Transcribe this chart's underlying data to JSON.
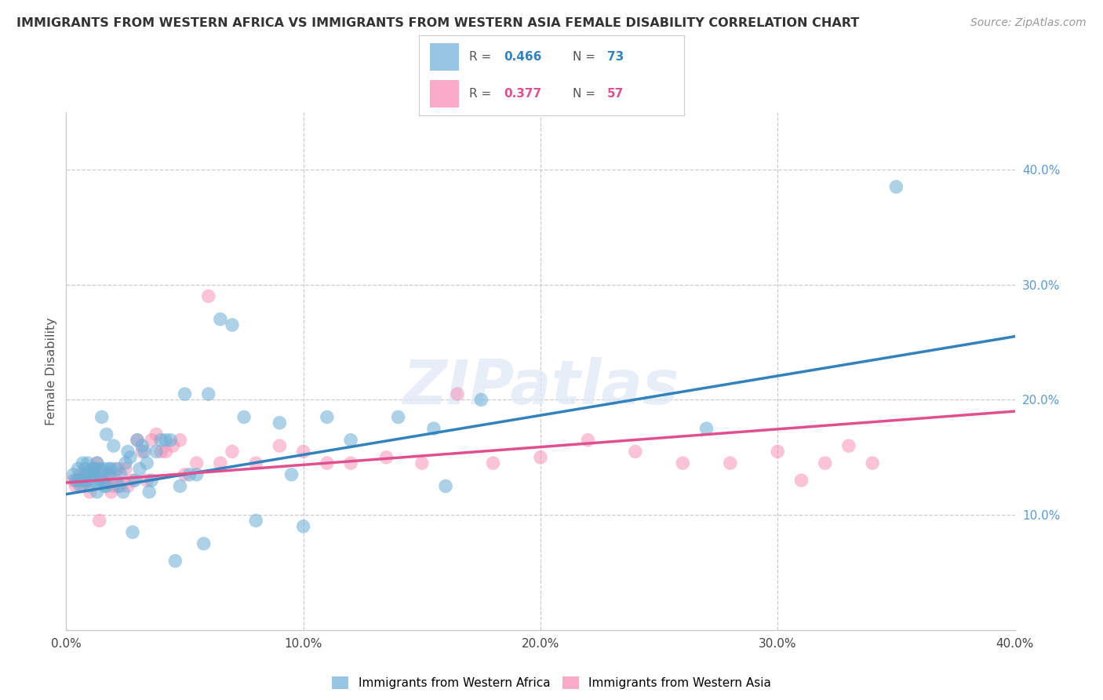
{
  "title": "IMMIGRANTS FROM WESTERN AFRICA VS IMMIGRANTS FROM WESTERN ASIA FEMALE DISABILITY CORRELATION CHART",
  "source": "Source: ZipAtlas.com",
  "ylabel": "Female Disability",
  "xlim": [
    0.0,
    0.4
  ],
  "ylim": [
    0.0,
    0.45
  ],
  "xticks": [
    0.0,
    0.1,
    0.2,
    0.3,
    0.4
  ],
  "xtick_labels": [
    "0.0%",
    "10.0%",
    "20.0%",
    "30.0%",
    "40.0%"
  ],
  "yticks_right": [
    0.1,
    0.2,
    0.3,
    0.4
  ],
  "ytick_labels_right": [
    "10.0%",
    "20.0%",
    "30.0%",
    "40.0%"
  ],
  "color_blue": "#6baed6",
  "color_pink": "#f888b0",
  "trendline_blue": "#3182bd",
  "trendline_pink": "#e05090",
  "label1": "Immigrants from Western Africa",
  "label2": "Immigrants from Western Asia",
  "watermark": "ZIPatlas",
  "blue_r": "0.466",
  "blue_n": "73",
  "pink_r": "0.377",
  "pink_n": "57",
  "blue_scatter_x": [
    0.003,
    0.004,
    0.005,
    0.005,
    0.006,
    0.007,
    0.007,
    0.008,
    0.008,
    0.009,
    0.009,
    0.01,
    0.01,
    0.011,
    0.011,
    0.012,
    0.012,
    0.013,
    0.013,
    0.014,
    0.014,
    0.015,
    0.015,
    0.016,
    0.016,
    0.017,
    0.017,
    0.018,
    0.018,
    0.019,
    0.02,
    0.021,
    0.022,
    0.023,
    0.024,
    0.025,
    0.026,
    0.027,
    0.028,
    0.029,
    0.03,
    0.031,
    0.032,
    0.033,
    0.034,
    0.035,
    0.036,
    0.038,
    0.04,
    0.042,
    0.044,
    0.046,
    0.048,
    0.05,
    0.052,
    0.055,
    0.058,
    0.06,
    0.065,
    0.07,
    0.075,
    0.08,
    0.09,
    0.095,
    0.1,
    0.11,
    0.12,
    0.14,
    0.155,
    0.16,
    0.175,
    0.27,
    0.35
  ],
  "blue_scatter_y": [
    0.135,
    0.13,
    0.13,
    0.14,
    0.125,
    0.13,
    0.145,
    0.14,
    0.135,
    0.13,
    0.145,
    0.125,
    0.135,
    0.14,
    0.13,
    0.135,
    0.14,
    0.12,
    0.145,
    0.13,
    0.14,
    0.13,
    0.185,
    0.14,
    0.125,
    0.125,
    0.17,
    0.14,
    0.135,
    0.14,
    0.16,
    0.14,
    0.125,
    0.135,
    0.12,
    0.145,
    0.155,
    0.15,
    0.085,
    0.13,
    0.165,
    0.14,
    0.16,
    0.155,
    0.145,
    0.12,
    0.13,
    0.155,
    0.165,
    0.165,
    0.165,
    0.06,
    0.125,
    0.205,
    0.135,
    0.135,
    0.075,
    0.205,
    0.27,
    0.265,
    0.185,
    0.095,
    0.18,
    0.135,
    0.09,
    0.185,
    0.165,
    0.185,
    0.175,
    0.125,
    0.2,
    0.175,
    0.385
  ],
  "pink_scatter_x": [
    0.003,
    0.004,
    0.005,
    0.006,
    0.007,
    0.008,
    0.009,
    0.01,
    0.011,
    0.012,
    0.013,
    0.014,
    0.015,
    0.016,
    0.017,
    0.018,
    0.019,
    0.02,
    0.021,
    0.022,
    0.023,
    0.025,
    0.026,
    0.028,
    0.03,
    0.032,
    0.034,
    0.036,
    0.038,
    0.04,
    0.042,
    0.045,
    0.048,
    0.05,
    0.055,
    0.06,
    0.065,
    0.07,
    0.08,
    0.09,
    0.1,
    0.11,
    0.12,
    0.135,
    0.15,
    0.165,
    0.18,
    0.2,
    0.22,
    0.24,
    0.26,
    0.28,
    0.3,
    0.31,
    0.32,
    0.33,
    0.34
  ],
  "pink_scatter_y": [
    0.13,
    0.125,
    0.13,
    0.135,
    0.125,
    0.13,
    0.135,
    0.12,
    0.135,
    0.14,
    0.145,
    0.095,
    0.135,
    0.13,
    0.13,
    0.135,
    0.12,
    0.125,
    0.13,
    0.14,
    0.125,
    0.14,
    0.125,
    0.13,
    0.165,
    0.155,
    0.13,
    0.165,
    0.17,
    0.155,
    0.155,
    0.16,
    0.165,
    0.135,
    0.145,
    0.29,
    0.145,
    0.155,
    0.145,
    0.16,
    0.155,
    0.145,
    0.145,
    0.15,
    0.145,
    0.205,
    0.145,
    0.15,
    0.165,
    0.155,
    0.145,
    0.145,
    0.155,
    0.13,
    0.145,
    0.16,
    0.145
  ],
  "blue_trend_x": [
    0.0,
    0.4
  ],
  "blue_trend_y": [
    0.118,
    0.255
  ],
  "pink_trend_x": [
    0.0,
    0.4
  ],
  "pink_trend_y": [
    0.128,
    0.19
  ],
  "grid_vlines": [
    0.1,
    0.2,
    0.3
  ],
  "grid_hlines": [
    0.1,
    0.2,
    0.3,
    0.4
  ]
}
